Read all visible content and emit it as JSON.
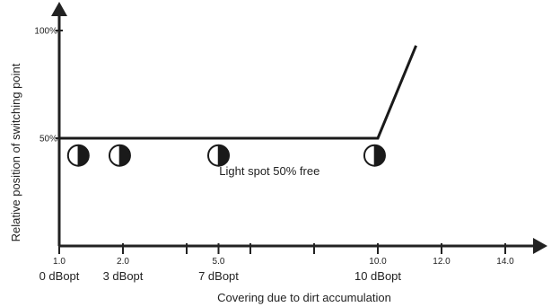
{
  "chart_data": {
    "type": "line",
    "title": "",
    "xlabel": "Covering due to dirt accumulation",
    "ylabel": "Relative position of switching point",
    "xlim": [
      1.0,
      15.5
    ],
    "ylim": [
      0,
      100
    ],
    "x_ticks": [
      {
        "value": 1.0,
        "label": "1.0"
      },
      {
        "value": 3.0,
        "label": "2.0"
      },
      {
        "value": 5.0,
        "label": ""
      },
      {
        "value": 6.0,
        "label": "5.0"
      },
      {
        "value": 7.0,
        "label": ""
      },
      {
        "value": 9.0,
        "label": ""
      },
      {
        "value": 11.0,
        "label": "10.0"
      },
      {
        "value": 13.0,
        "label": "12.0"
      },
      {
        "value": 15.0,
        "label": "14.0"
      }
    ],
    "y_ticks": [
      {
        "value": 50,
        "label": "50%"
      },
      {
        "value": 100,
        "label": "100%"
      }
    ],
    "db_labels": [
      {
        "x": 1.0,
        "label": "0 dBopt"
      },
      {
        "x": 3.0,
        "label": "3 dBopt"
      },
      {
        "x": 6.0,
        "label": "7 dBopt"
      },
      {
        "x": 11.0,
        "label": "10 dBopt"
      }
    ],
    "series": [
      {
        "points": [
          [
            1.0,
            50
          ],
          [
            11.0,
            50
          ],
          [
            12.2,
            93
          ]
        ]
      }
    ],
    "spot_markers": [
      1.6,
      2.9,
      6.0,
      10.9
    ],
    "annotation": {
      "text": "Light spot 50% free",
      "x": 7.6,
      "y": 33
    },
    "grid": false,
    "legend": "none"
  }
}
